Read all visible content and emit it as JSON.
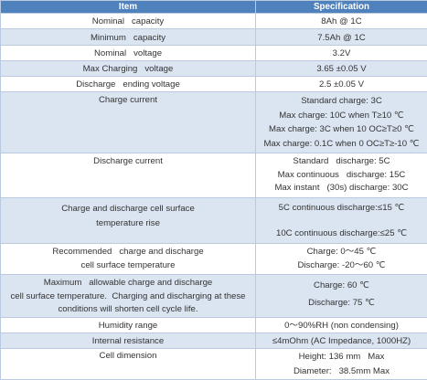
{
  "header": {
    "item": "Item",
    "spec": "Specification"
  },
  "rows": [
    {
      "item": [
        "Nominal   capacity"
      ],
      "spec": [
        "8Ah @ 1C"
      ]
    },
    {
      "item": [
        "Minimum   capacity"
      ],
      "spec": [
        "7.5Ah @ 1C"
      ]
    },
    {
      "item": [
        "Nominal   voltage"
      ],
      "spec": [
        "3.2V"
      ]
    },
    {
      "item": [
        "Max Charging   voltage"
      ],
      "spec": [
        "3.65 ±0.05 V"
      ]
    },
    {
      "item": [
        "Discharge   ending voltage"
      ],
      "spec": [
        "2.5 ±0.05 V"
      ]
    },
    {
      "item": [
        "Charge current"
      ],
      "spec": [
        "Standard charge: 3C",
        "Max charge: 10C when T≥10 ℃",
        "Max charge: 3C when 10 OC≥T≥0 ℃",
        "Max charge: 0.1C when 0 OC≥T≥-10 ℃"
      ]
    },
    {
      "item": [
        "Discharge current"
      ],
      "spec": [
        "Standard   discharge: 5C",
        "Max continuous   discharge: 15C",
        "Max instant   (30s) discharge: 30C"
      ]
    },
    {
      "item": [
        "Charge and discharge cell surface",
        "temperature rise"
      ],
      "spec": [
        "5C continuous discharge:≤15 ℃",
        "",
        "10C continuous discharge:≤25 ℃"
      ]
    },
    {
      "item": [
        "Recommended   charge and discharge",
        "cell surface temperature"
      ],
      "spec": [
        "Charge: 0～45 ℃",
        "Discharge: -20～60 ℃"
      ]
    },
    {
      "item": [
        "Maximum   allowable charge and discharge",
        "cell surface temperature.  Charging and discharging at these",
        "conditions will shorten cell cycle life."
      ],
      "spec": [
        "Charge: 60 ℃",
        "Discharge: 75 ℃"
      ]
    },
    {
      "item": [
        "Humidity range"
      ],
      "spec": [
        "0～90%RH (non condensing)"
      ]
    },
    {
      "item": [
        "Internal resistance"
      ],
      "spec": [
        "≤4mOhm (AC Impedance, 1000HZ)"
      ]
    },
    {
      "item": [
        "Cell dimension"
      ],
      "spec": [
        "Height: 136 mm   Max",
        "Diameter:   38.5mm Max"
      ]
    }
  ]
}
